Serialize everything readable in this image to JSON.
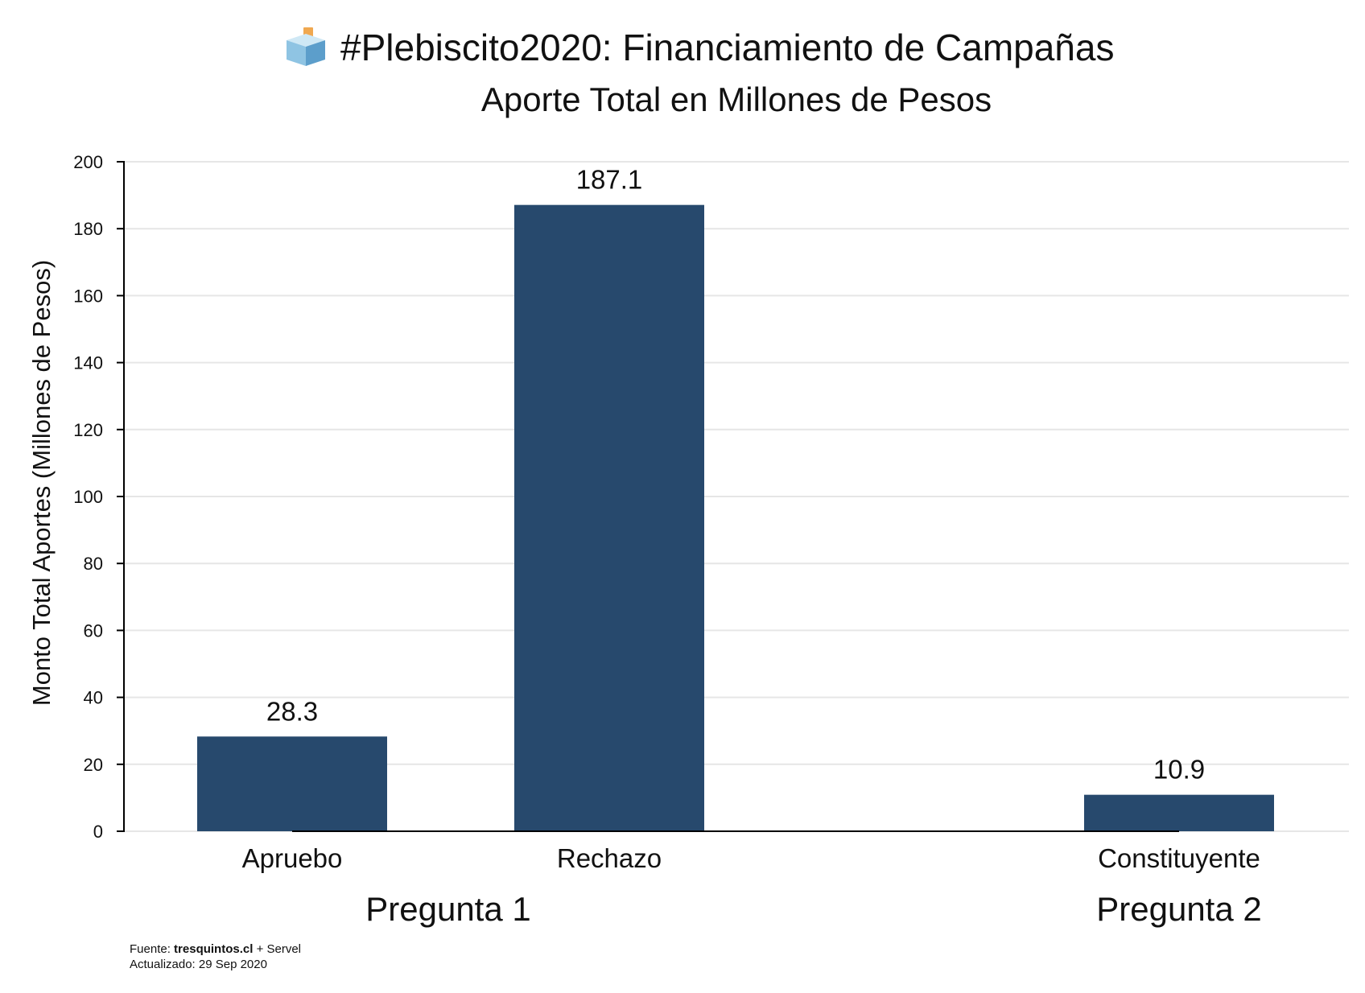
{
  "header": {
    "title": "#Plebiscito2020: Financiamiento de Campañas",
    "subtitle": "Aporte Total en Millones de Pesos",
    "title_icon": "ballot-box-icon"
  },
  "footer": {
    "source_prefix": "Fuente: ",
    "source_site": "tresquintos.cl",
    "source_suffix": " + Servel",
    "updated": "Actualizado: 29 Sep 2020"
  },
  "colors": {
    "bar": "#27496d",
    "grid": "#e6e6e6",
    "axis": "#000000",
    "icon_box_top": "#cfe8f5",
    "icon_box_left": "#8fc4e3",
    "icon_box_right": "#5c9ecb",
    "icon_ballot": "#f0a850"
  },
  "chart_data": {
    "type": "bar",
    "title": "#Plebiscito2020: Financiamiento de Campañas",
    "subtitle": "Aporte Total en Millones de Pesos",
    "xlabel": "",
    "ylabel": "Monto Total Aportes (Millones de Pesos)",
    "ylim": [
      0,
      200
    ],
    "yticks": [
      0,
      20,
      40,
      60,
      80,
      100,
      120,
      140,
      160,
      180,
      200
    ],
    "grid": true,
    "categories": [
      "Apruebo",
      "Rechazo",
      "Constituyente"
    ],
    "values": [
      28.3,
      187.1,
      10.9
    ],
    "value_labels": [
      "28.3",
      "187.1",
      "10.9"
    ],
    "groups": [
      {
        "label": "Pregunta 1",
        "categories": [
          "Apruebo",
          "Rechazo"
        ]
      },
      {
        "label": "Pregunta 2",
        "categories": [
          "Constituyente"
        ]
      }
    ]
  }
}
